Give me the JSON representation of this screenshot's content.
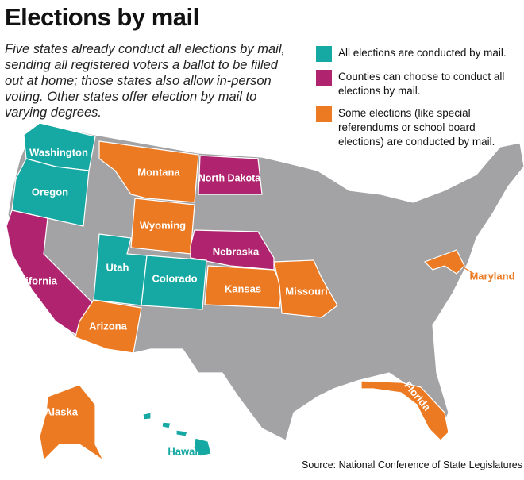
{
  "header": {
    "title": "Elections by mail",
    "subtitle": "Five states already conduct all elections by mail, sending all registered voters a ballot to be filled out at home; those states also allow in-person voting. Other states offer election by mail to varying degrees."
  },
  "legend": [
    {
      "label": "All elections are conducted by mail.",
      "color": "#16a8a3"
    },
    {
      "label": "Counties can choose to conduct all elections by mail.",
      "color": "#b0246f"
    },
    {
      "label": "Some elections (like special referendums or school board elections) are conducted by mail.",
      "color": "#ec7a22"
    }
  ],
  "states": [
    {
      "label": "Washington",
      "category": 0
    },
    {
      "label": "Oregon",
      "category": 0
    },
    {
      "label": "California",
      "category": 1
    },
    {
      "label": "Montana",
      "category": 2
    },
    {
      "label": "North Dakota",
      "category": 1
    },
    {
      "label": "Wyoming",
      "category": 2
    },
    {
      "label": "Nebraska",
      "category": 1
    },
    {
      "label": "Utah",
      "category": 0
    },
    {
      "label": "Colorado",
      "category": 0
    },
    {
      "label": "Kansas",
      "category": 2
    },
    {
      "label": "Missouri",
      "category": 2
    },
    {
      "label": "Arizona",
      "category": 2
    },
    {
      "label": "Maryland",
      "category": 2
    },
    {
      "label": "Florida",
      "category": 2
    },
    {
      "label": "Alaska",
      "category": 2
    },
    {
      "label": "Hawaii",
      "category": 0
    }
  ],
  "source": "Source: National Conference of State Legislatures"
}
